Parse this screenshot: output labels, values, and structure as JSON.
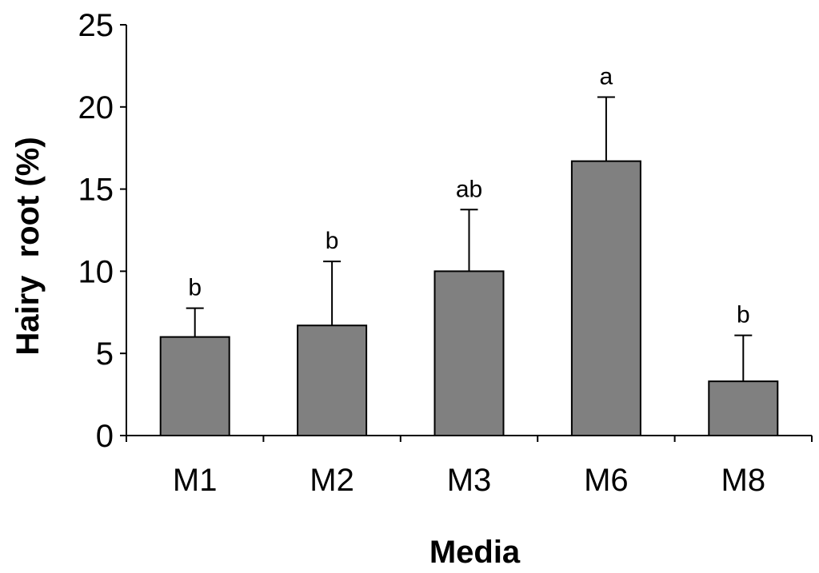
{
  "chart_data": {
    "type": "bar",
    "categories": [
      "M1",
      "M2",
      "M3",
      "M6",
      "M8"
    ],
    "values": [
      6.0,
      6.7,
      10.0,
      16.7,
      3.3
    ],
    "errors": [
      1.75,
      3.9,
      3.75,
      3.9,
      2.8
    ],
    "significance": [
      "b",
      "b",
      "ab",
      "a",
      "b"
    ],
    "xlabel": "Media",
    "ylabel": "Hairy  root (%)",
    "ylim": [
      0,
      25
    ],
    "yticks": [
      "0",
      "5",
      "10",
      "15",
      "20",
      "25"
    ],
    "grid": false,
    "bar_color": "#808080",
    "bar_edge_color": "#000000"
  }
}
